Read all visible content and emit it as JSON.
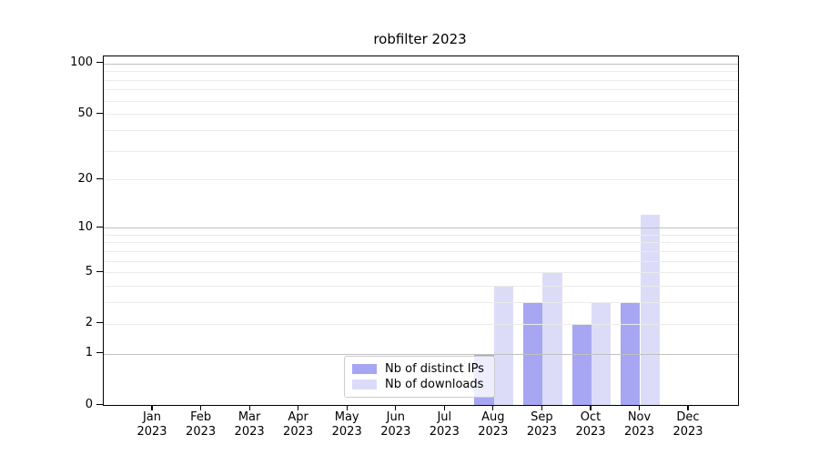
{
  "title": "robfilter 2023",
  "legend": {
    "items": [
      {
        "label": "Nb of distinct IPs",
        "color": "#a6a6f2"
      },
      {
        "label": "Nb of downloads",
        "color": "#dcdcf9"
      }
    ]
  },
  "chart_data": {
    "type": "bar",
    "title": "robfilter 2023",
    "categories": [
      "Jan 2023",
      "Feb 2023",
      "Mar 2023",
      "Apr 2023",
      "May 2023",
      "Jun 2023",
      "Jul 2023",
      "Aug 2023",
      "Sep 2023",
      "Oct 2023",
      "Nov 2023",
      "Dec 2023"
    ],
    "series": [
      {
        "name": "Nb of distinct IPs",
        "color": "#a6a6f2",
        "values": [
          0,
          0,
          0,
          0,
          0,
          0,
          0,
          1,
          3,
          2,
          3,
          0
        ]
      },
      {
        "name": "Nb of downloads",
        "color": "#dcdcf9",
        "values": [
          0,
          0,
          0,
          0,
          0,
          0,
          0,
          4,
          5,
          3,
          12,
          0
        ]
      }
    ],
    "yscale": "log1p",
    "ylim": [
      0,
      110
    ],
    "yticks": [
      {
        "value": 0,
        "label": "0"
      },
      {
        "value": 1,
        "label": "1"
      },
      {
        "value": 2,
        "label": "2"
      },
      {
        "value": 5,
        "label": "5"
      },
      {
        "value": 10,
        "label": "10"
      },
      {
        "value": 20,
        "label": "20"
      },
      {
        "value": 50,
        "label": "50"
      },
      {
        "value": 100,
        "label": "100"
      }
    ],
    "grid": {
      "major": [
        1,
        10,
        100
      ],
      "minor": [
        2,
        3,
        4,
        5,
        6,
        7,
        8,
        9,
        20,
        30,
        40,
        50,
        60,
        70,
        80,
        90
      ],
      "major_color": "#c0c0c0",
      "minor_color": "#ebebeb"
    },
    "legend_position": "lower center"
  }
}
